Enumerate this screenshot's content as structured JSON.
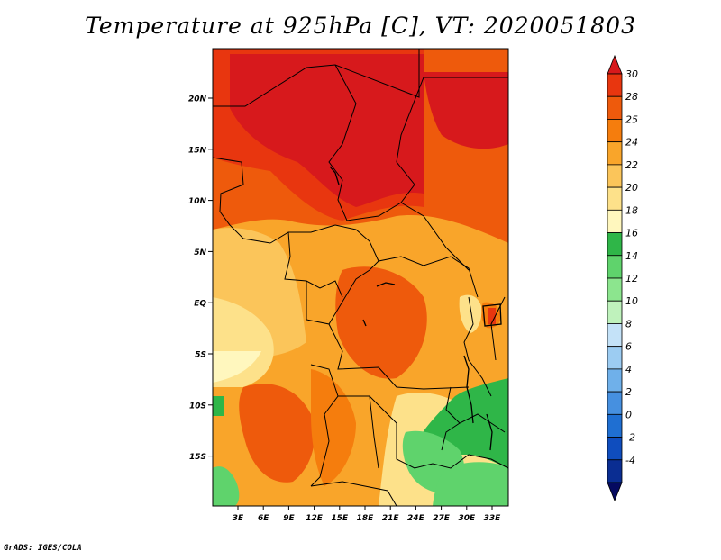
{
  "title": "Temperature at 925hPa [C], VT: 2020051803",
  "credit": "GrADS: IGES/COLA",
  "map": {
    "lon_range": [
      0,
      35
    ],
    "lat_range": [
      -20,
      25
    ],
    "lat_ticks": [
      "20N",
      "15N",
      "10N",
      "5N",
      "EQ",
      "5S",
      "10S",
      "15S"
    ],
    "lon_ticks": [
      "3E",
      "6E",
      "9E",
      "12E",
      "15E",
      "18E",
      "21E",
      "24E",
      "27E",
      "30E",
      "33E"
    ]
  },
  "colorbar": {
    "labels": [
      "30",
      "28",
      "25",
      "24",
      "22",
      "20",
      "18",
      "16",
      "14",
      "12",
      "10",
      "8",
      "6",
      "4",
      "2",
      "0",
      "-2",
      "-4"
    ],
    "colors": [
      "#d7191c",
      "#e8360f",
      "#ee5a0c",
      "#f57d0d",
      "#f9a52a",
      "#fbc55a",
      "#fde18a",
      "#fff7be",
      "#2fb648",
      "#5fd36c",
      "#8ce58e",
      "#bff2bc",
      "#c4e2f8",
      "#9cccf2",
      "#6fb0ea",
      "#4690e0",
      "#1f6fd2",
      "#0f4dbe",
      "#0a2d92",
      "#050a60"
    ]
  }
}
